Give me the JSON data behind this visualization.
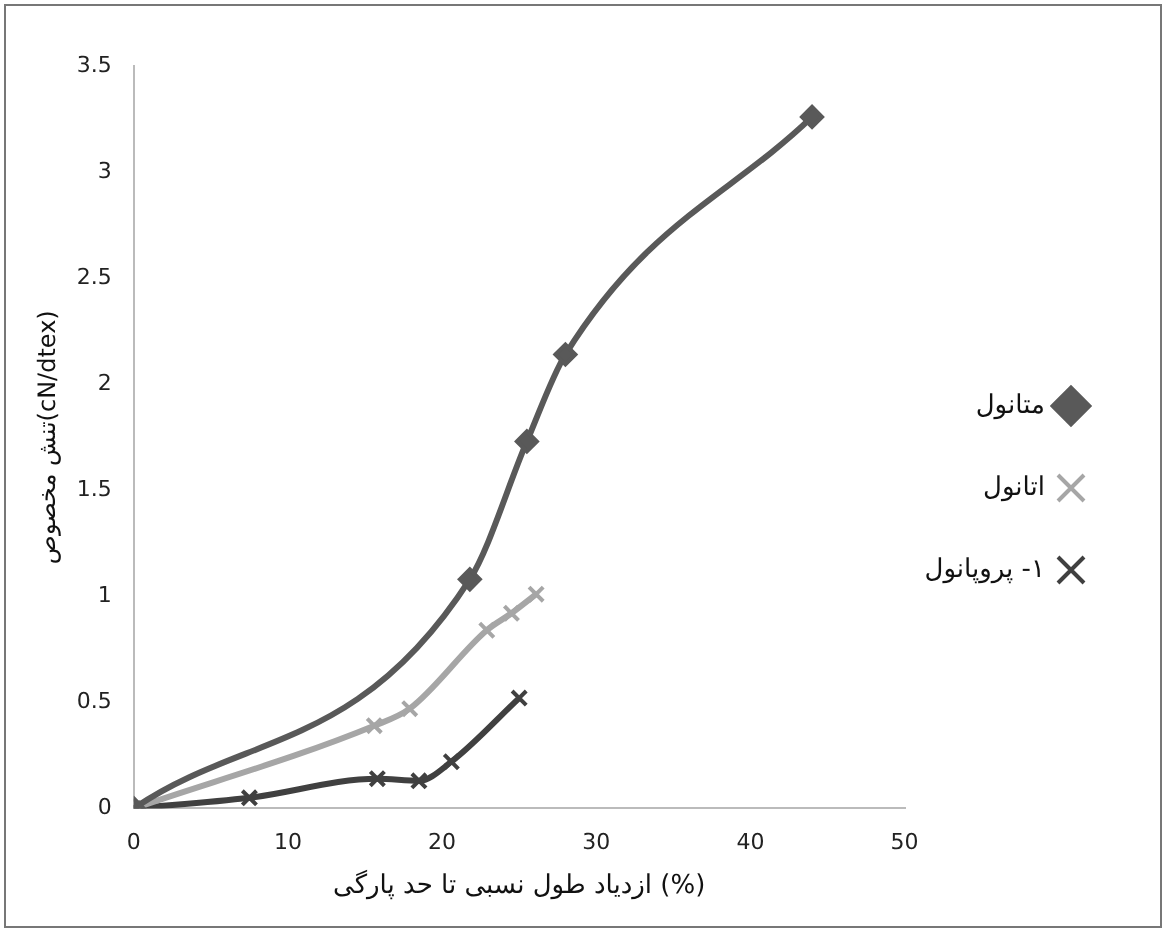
{
  "chart_data": {
    "type": "line",
    "xlabel": "ازدیاد طول نسبی تا حد پارگی (%)",
    "ylabel": "تنش مخصوص(cN/dtex)",
    "xlim": [
      0,
      50
    ],
    "xticks": [
      0,
      10,
      20,
      30,
      40,
      50
    ],
    "ylim": [
      0,
      3.5
    ],
    "yticks": [
      0,
      0.5,
      1,
      1.5,
      2,
      2.5,
      3,
      3.5
    ],
    "grid": false,
    "legend": "right",
    "series": [
      {
        "name": "متانول",
        "color": "#595959",
        "marker": "diamond",
        "x": [
          0,
          21.8,
          25.5,
          28,
          44
        ],
        "values": [
          0,
          1.08,
          1.73,
          2.14,
          3.26
        ]
      },
      {
        "name": "اتانول",
        "color": "#a6a6a6",
        "marker": "cross",
        "x": [
          0,
          15.6,
          17.9,
          22.9,
          24.5,
          26.1
        ],
        "values": [
          0,
          0.39,
          0.47,
          0.84,
          0.92,
          1.01
        ]
      },
      {
        "name": "١- پروپانول",
        "color": "#404040",
        "marker": "cross",
        "x": [
          0,
          7.5,
          15.8,
          18.5,
          20.6,
          25
        ],
        "values": [
          0,
          0.05,
          0.14,
          0.13,
          0.22,
          0.52
        ]
      }
    ]
  }
}
